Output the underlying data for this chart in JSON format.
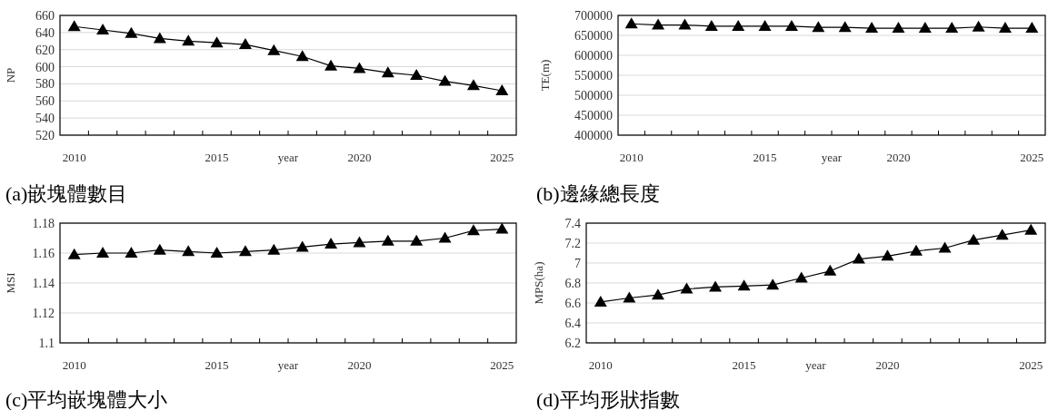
{
  "chart_data": [
    {
      "type": "line",
      "title": "(a)嵌塊體數目",
      "xlabel": "year",
      "ylabel": "NP",
      "categories": [
        "2010",
        null,
        null,
        null,
        null,
        "2015",
        null,
        null,
        null,
        null,
        "2020",
        null,
        null,
        null,
        null,
        "2025"
      ],
      "series": [
        {
          "color": "#000000",
          "values": [
            647,
            643,
            639,
            633,
            630,
            628,
            626,
            619,
            612,
            601,
            598,
            593,
            590,
            583,
            578,
            572
          ]
        }
      ],
      "ylim": [
        520,
        660
      ],
      "yticks": [
        520,
        540,
        560,
        580,
        600,
        620,
        640,
        660
      ],
      "grid": "y",
      "marker": "triangle",
      "line_style": "solid"
    },
    {
      "type": "line",
      "title": "(b)邊緣總長度",
      "xlabel": "year",
      "ylabel": "TE(m)",
      "categories": [
        "2010",
        null,
        null,
        null,
        null,
        "2015",
        null,
        null,
        null,
        null,
        "2020",
        null,
        null,
        null,
        null,
        "2025"
      ],
      "series": [
        {
          "color": "#000000",
          "values": [
            679000,
            676000,
            676000,
            673000,
            673000,
            673000,
            673000,
            670000,
            670000,
            668000,
            668000,
            668000,
            668000,
            671000,
            668000,
            668000
          ]
        }
      ],
      "ylim": [
        400000,
        700000
      ],
      "yticks": [
        400000,
        450000,
        500000,
        550000,
        600000,
        650000,
        700000
      ],
      "grid": "y",
      "marker": "triangle",
      "line_style": "solid"
    },
    {
      "type": "line",
      "title": "(c)平均嵌塊體大小",
      "xlabel": "year",
      "ylabel": "MSI",
      "categories": [
        "2010",
        null,
        null,
        null,
        null,
        "2015",
        null,
        null,
        null,
        null,
        "2020",
        null,
        null,
        null,
        null,
        "2025"
      ],
      "series": [
        {
          "color": "#000000",
          "values": [
            1.159,
            1.16,
            1.16,
            1.162,
            1.161,
            1.16,
            1.161,
            1.162,
            1.164,
            1.166,
            1.167,
            1.168,
            1.168,
            1.17,
            1.175,
            1.176
          ]
        }
      ],
      "ylim": [
        1.1,
        1.18
      ],
      "yticks": [
        1.1,
        1.12,
        1.14,
        1.16,
        1.18
      ],
      "grid": "y",
      "marker": "triangle",
      "line_style": "solid"
    },
    {
      "type": "line",
      "title": "(d)平均形狀指數",
      "xlabel": "year",
      "ylabel": "MPS(ha)",
      "categories": [
        "2010",
        null,
        null,
        null,
        null,
        "2015",
        null,
        null,
        null,
        null,
        "2020",
        null,
        null,
        null,
        null,
        "2025"
      ],
      "series": [
        {
          "color": "#000000",
          "values": [
            6.61,
            6.65,
            6.68,
            6.74,
            6.76,
            6.77,
            6.78,
            6.85,
            6.92,
            7.04,
            7.07,
            7.12,
            7.15,
            7.23,
            7.28,
            7.33
          ]
        }
      ],
      "ylim": [
        6.2,
        7.4
      ],
      "yticks": [
        6.2,
        6.4,
        6.6,
        6.8,
        7,
        7.2,
        7.4
      ],
      "grid": "y",
      "marker": "triangle",
      "line_style": "solid"
    }
  ]
}
